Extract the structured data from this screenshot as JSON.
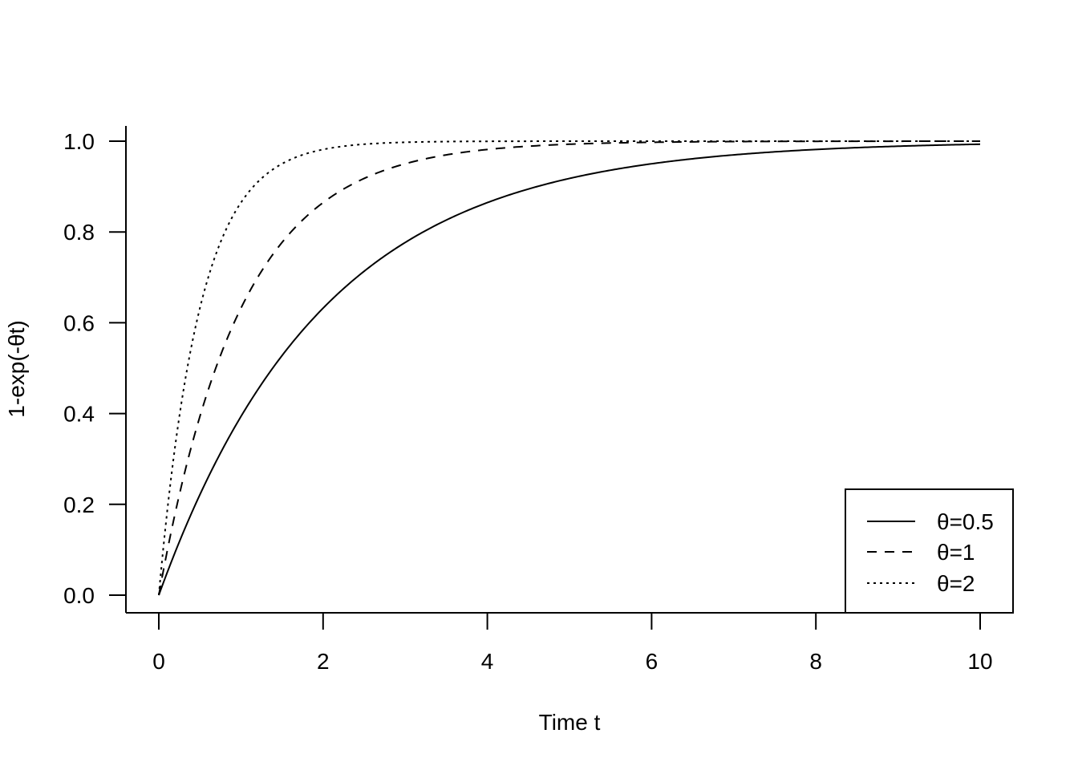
{
  "chart_data": {
    "type": "line",
    "title": "",
    "xlabel": "Time t",
    "ylabel": "1-exp(-θt)",
    "xlim": [
      0,
      10
    ],
    "ylim": [
      0,
      1
    ],
    "x_ticks": [
      "0",
      "2",
      "4",
      "6",
      "8",
      "10"
    ],
    "y_ticks": [
      "0.0",
      "0.2",
      "0.4",
      "0.6",
      "0.8",
      "1.0"
    ],
    "grid": false,
    "legend_position": "bottom-right",
    "series": [
      {
        "name": "θ=0.5",
        "theta": 0.5,
        "line_style": "solid"
      },
      {
        "name": "θ=1",
        "theta": 1,
        "line_style": "dashed"
      },
      {
        "name": "θ=2",
        "theta": 2,
        "line_style": "dotted"
      }
    ]
  }
}
